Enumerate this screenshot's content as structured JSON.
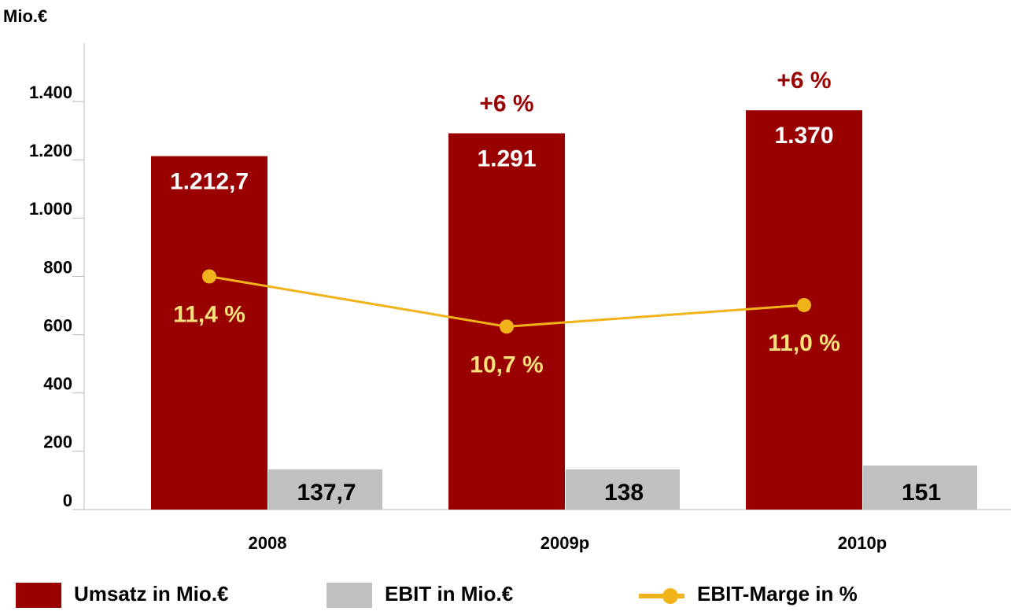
{
  "chart_data": {
    "type": "bar",
    "y_axis_label": "Mio.€",
    "categories": [
      "2008",
      "2009p",
      "2010p"
    ],
    "series": [
      {
        "name": "Umsatz in Mio.€",
        "color": "#990000",
        "values": [
          1212.7,
          1291,
          1370
        ],
        "value_labels": [
          "1.212,7",
          "1.291",
          "1.370"
        ]
      },
      {
        "name": "EBIT in Mio.€",
        "color": "#c0c0c0",
        "values": [
          137.7,
          138,
          151
        ],
        "value_labels": [
          "137,7",
          "138",
          "151"
        ]
      },
      {
        "name": "EBIT-Marge in %",
        "type": "line",
        "axis": "y2",
        "color": "#f0b31a",
        "values": [
          11.4,
          10.7,
          11.0
        ],
        "value_labels": [
          "11,4 %",
          "10,7 %",
          "11,0 %"
        ]
      }
    ],
    "annotations": [
      null,
      "+6 %",
      "+6 %"
    ],
    "ylim": [
      0,
      1600
    ],
    "yticks": [
      0,
      200,
      400,
      600,
      800,
      {
        "value": 1000,
        "label": "1.000"
      },
      {
        "value": 1200,
        "label": "1.200"
      },
      {
        "value": 1400,
        "label": "1.400"
      }
    ],
    "y2lim": [
      8.15,
      14.65
    ]
  }
}
